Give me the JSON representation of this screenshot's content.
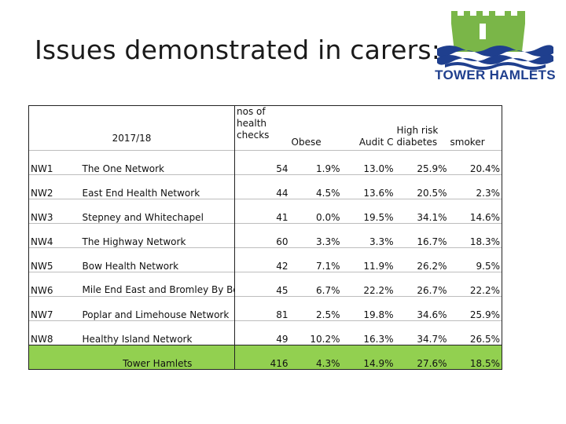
{
  "slide": {
    "title": "Issues demonstrated in carers:",
    "logo_text": "TOWER HAMLETS"
  },
  "table": {
    "year_label": "2017/18",
    "headers": {
      "checks": "nos of health checks",
      "obese": "Obese",
      "audit": "Audit C",
      "diabetes": "High risk diabetes",
      "smoker": "smoker"
    },
    "rows": [
      {
        "code": "NW1",
        "name": "The One Network",
        "checks": "54",
        "obese": "1.9%",
        "audit": "13.0%",
        "diabetes": "25.9%",
        "smoker": "20.4%"
      },
      {
        "code": "NW2",
        "name": "East End Health Network",
        "checks": "44",
        "obese": "4.5%",
        "audit": "13.6%",
        "diabetes": "20.5%",
        "smoker": "2.3%"
      },
      {
        "code": "NW3",
        "name": "Stepney and Whitechapel",
        "checks": "41",
        "obese": "0.0%",
        "audit": "19.5%",
        "diabetes": "34.1%",
        "smoker": "14.6%"
      },
      {
        "code": "NW4",
        "name": "The Highway Network",
        "checks": "60",
        "obese": "3.3%",
        "audit": "3.3%",
        "diabetes": "16.7%",
        "smoker": "18.3%"
      },
      {
        "code": "NW5",
        "name": "Bow Health Network",
        "checks": "42",
        "obese": "7.1%",
        "audit": "11.9%",
        "diabetes": "26.2%",
        "smoker": "9.5%"
      },
      {
        "code": "NW6",
        "name": "Mile End East and Bromley By Bow",
        "checks": "45",
        "obese": "6.7%",
        "audit": "22.2%",
        "diabetes": "26.7%",
        "smoker": "22.2%"
      },
      {
        "code": "NW7",
        "name": "Poplar and Limehouse Network",
        "checks": "81",
        "obese": "2.5%",
        "audit": "19.8%",
        "diabetes": "34.6%",
        "smoker": "25.9%"
      },
      {
        "code": "NW8",
        "name": "Healthy Island Network",
        "checks": "49",
        "obese": "10.2%",
        "audit": "16.3%",
        "diabetes": "34.7%",
        "smoker": "26.5%"
      }
    ],
    "total": {
      "name": "Tower Hamlets",
      "checks": "416",
      "obese": "4.3%",
      "audit": "14.9%",
      "diabetes": "27.6%",
      "smoker": "18.5%"
    }
  },
  "colors": {
    "total_row": "#92d050",
    "logo_green": "#7ab648",
    "logo_blue": "#1f3f8e"
  }
}
